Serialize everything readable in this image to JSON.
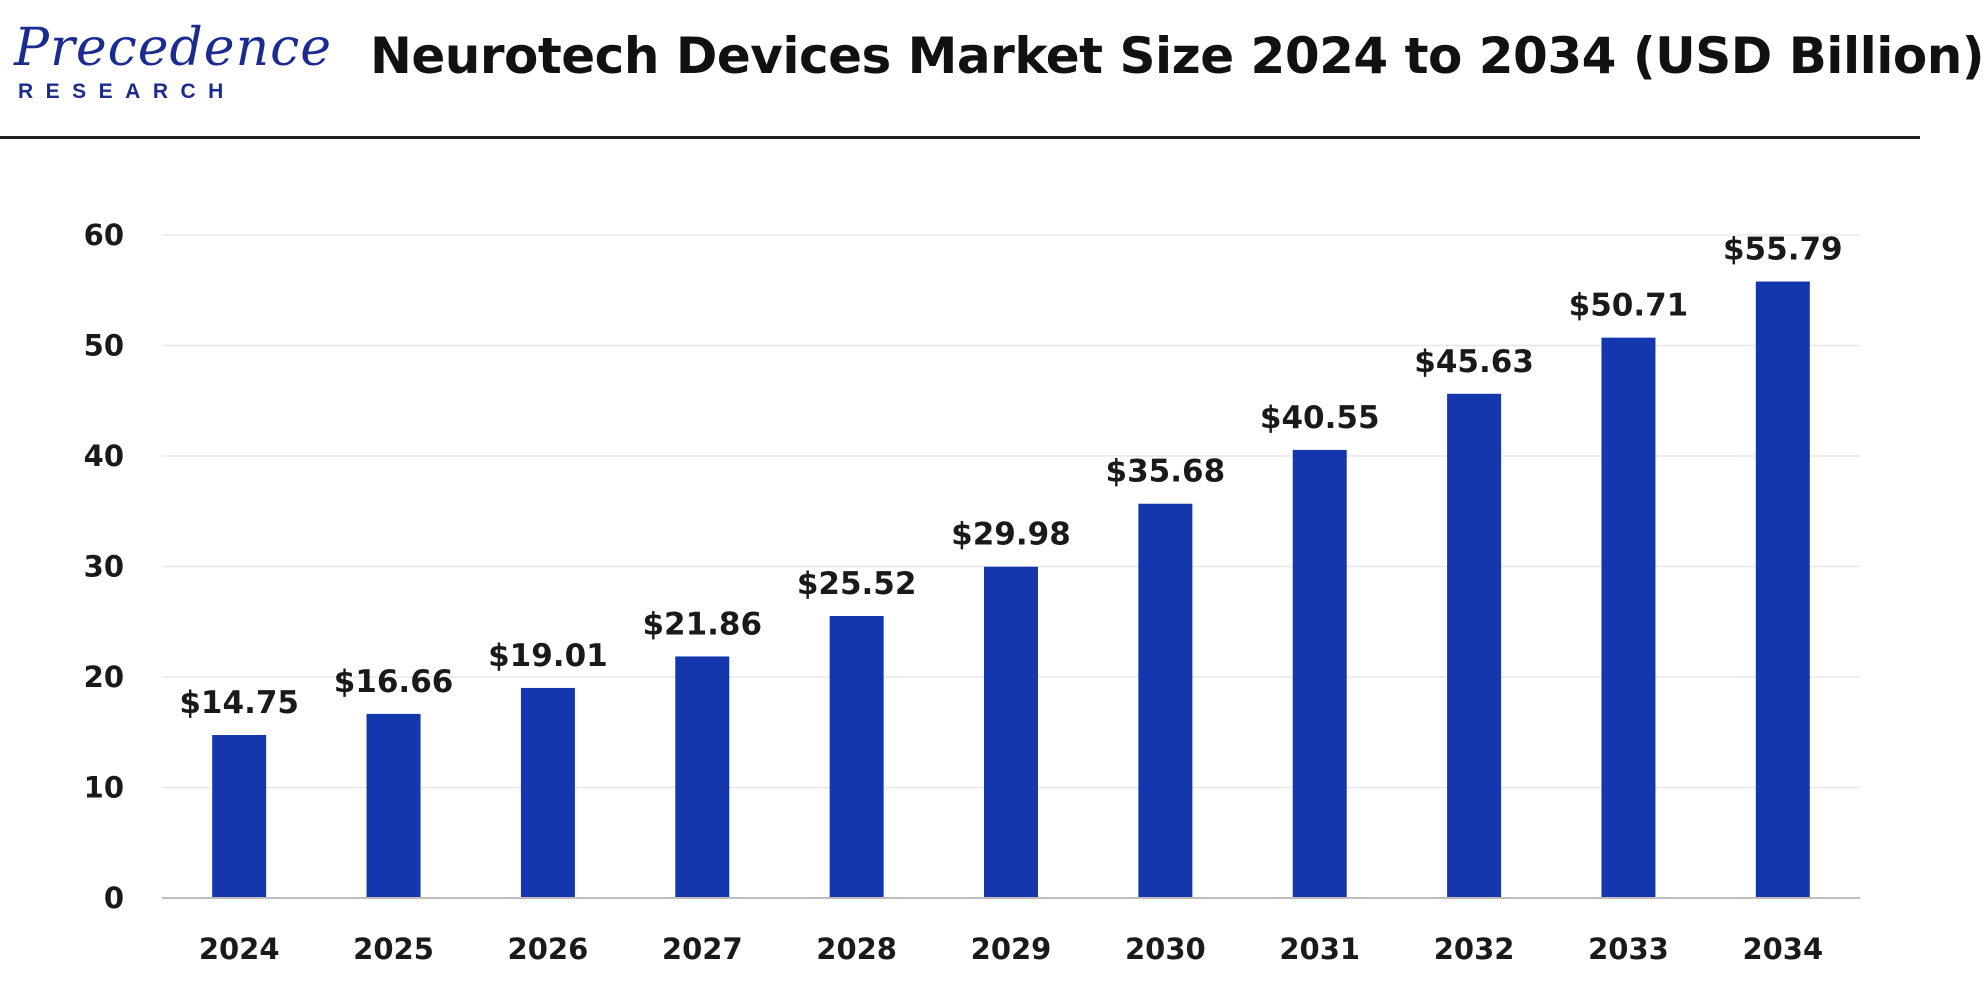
{
  "brand": {
    "name": "Precedence",
    "sub": "RESEARCH"
  },
  "header": {
    "title": "Neurotech Devices Market Size 2024 to 2034 (USD Billion)"
  },
  "colors": {
    "bar": "#1437ae",
    "grid": "#e8e8e8",
    "axis": "#bdbdbd",
    "brand": "#1c2b8f"
  },
  "chart_data": {
    "type": "bar",
    "title": "Neurotech Devices Market Size 2024 to 2034 (USD Billion)",
    "xlabel": "",
    "ylabel": "",
    "categories": [
      "2024",
      "2025",
      "2026",
      "2027",
      "2028",
      "2029",
      "2030",
      "2031",
      "2032",
      "2033",
      "2034"
    ],
    "values": [
      14.75,
      16.66,
      19.01,
      21.86,
      25.52,
      29.98,
      35.68,
      40.55,
      45.63,
      50.71,
      55.79
    ],
    "data_labels": [
      "$14.75",
      "$16.66",
      "$19.01",
      "$21.86",
      "$25.52",
      "$29.98",
      "$35.68",
      "$40.55",
      "$45.63",
      "$50.71",
      "$55.79"
    ],
    "ylim": [
      0,
      60
    ],
    "yticks": [
      0,
      10,
      20,
      30,
      40,
      50,
      60
    ],
    "grid": true,
    "legend": "none"
  }
}
